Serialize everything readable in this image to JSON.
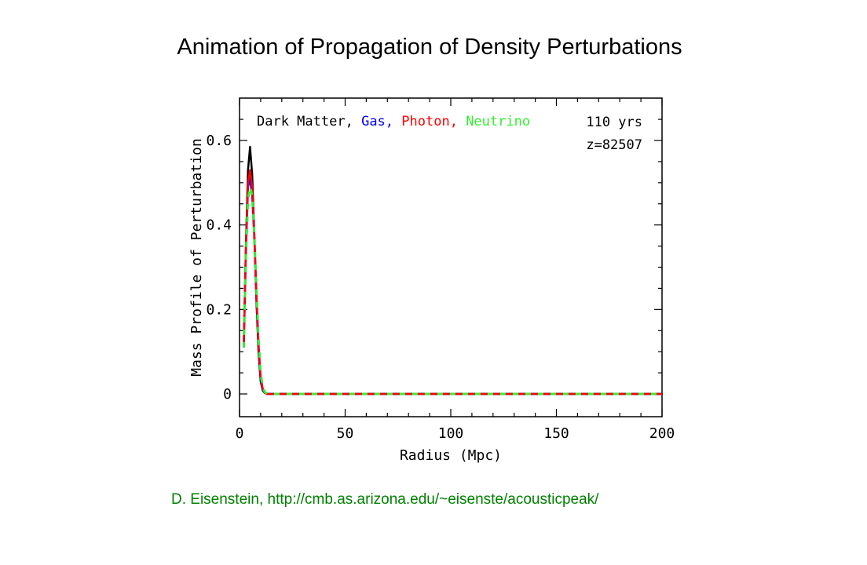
{
  "slide": {
    "title": "Animation of Propagation of Density Perturbations",
    "credit": "D. Eisenstein, http://cmb.as.arizona.edu/~eisenste/acousticpeak/"
  },
  "chart_data": {
    "type": "line",
    "title": "",
    "xlabel": "Radius (Mpc)",
    "ylabel": "Mass Profile of Perturbation",
    "xlim": [
      0,
      200
    ],
    "ylim": [
      -0.05,
      0.7
    ],
    "xticks": [
      0,
      50,
      100,
      150,
      200
    ],
    "xtick_labels": [
      "0",
      "50",
      "100",
      "150",
      "200"
    ],
    "yticks": [
      0,
      0.2,
      0.4,
      0.6
    ],
    "ytick_labels": [
      "0",
      "0.2",
      "0.4",
      "0.6"
    ],
    "grid": false,
    "legend_placement": "top-left",
    "annotations": {
      "time": "110 yrs",
      "redshift": "z=82507"
    },
    "x": [
      2,
      3,
      4,
      5,
      6,
      7,
      8,
      9,
      10,
      11,
      12,
      13,
      14,
      16,
      20,
      30,
      50,
      100,
      150,
      200
    ],
    "series": [
      {
        "name": "Dark Matter",
        "color": "#000000",
        "dash": "solid",
        "values": [
          0.12,
          0.35,
          0.53,
          0.585,
          0.52,
          0.38,
          0.22,
          0.1,
          0.03,
          0.008,
          0.002,
          0.0,
          0.0,
          0.0,
          0.0,
          0.0,
          0.0,
          0.0,
          0.0,
          0.0
        ]
      },
      {
        "name": "Gas",
        "color": "#0000ff",
        "dash": "solid",
        "values": [
          0.11,
          0.33,
          0.49,
          0.51,
          0.47,
          0.37,
          0.23,
          0.11,
          0.035,
          0.01,
          0.003,
          0.0,
          0.0,
          0.0,
          0.0,
          0.0,
          0.0,
          0.0,
          0.0,
          0.0
        ]
      },
      {
        "name": "Photon",
        "color": "#ff0000",
        "dash": "solid",
        "values": [
          0.12,
          0.34,
          0.5,
          0.53,
          0.49,
          0.38,
          0.24,
          0.12,
          0.04,
          0.012,
          0.003,
          0.0,
          0.0,
          0.0,
          0.0,
          0.0,
          0.0,
          0.0,
          0.0,
          0.0
        ]
      },
      {
        "name": "Neutrino",
        "color": "#33ee33",
        "dash": "dashed",
        "values": [
          0.11,
          0.32,
          0.46,
          0.49,
          0.47,
          0.38,
          0.25,
          0.13,
          0.05,
          0.015,
          0.004,
          0.001,
          0.0,
          0.0,
          0.0,
          0.0,
          0.0,
          0.0,
          0.0,
          0.0
        ]
      }
    ]
  }
}
